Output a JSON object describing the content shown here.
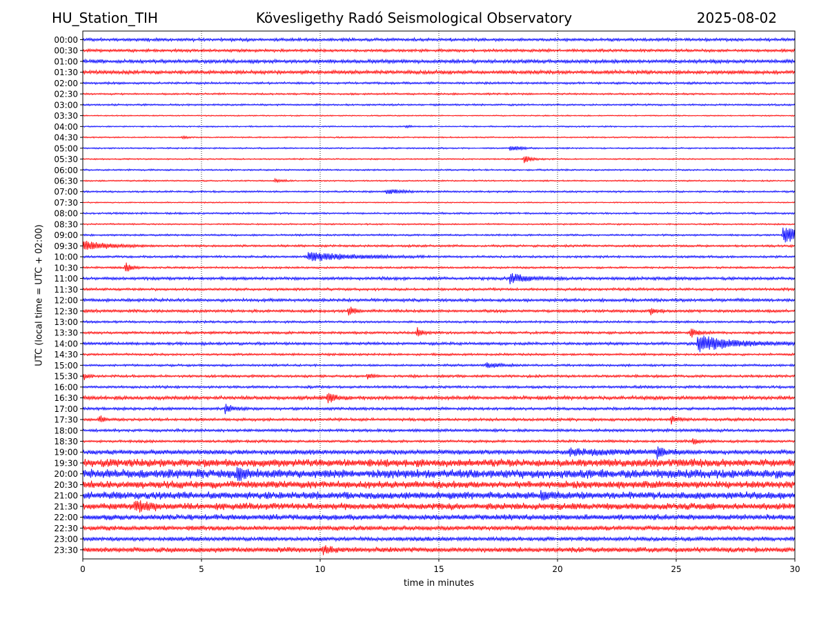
{
  "header": {
    "station": "HU_Station_TIH",
    "observatory": "Kövesligethy Radó Seismological Observatory",
    "date": "2025-08-02"
  },
  "chart_data": {
    "type": "line",
    "subtype": "helicorder",
    "title": "Kövesligethy Radó Seismological Observatory",
    "xlabel": "time in minutes",
    "ylabel": "UTC (local time = UTC + 02:00)",
    "xlim": [
      0,
      30
    ],
    "x_ticks": [
      0,
      5,
      10,
      15,
      20,
      25,
      30
    ],
    "grid": "vertical dotted lines at 5-minute ticks",
    "colors": {
      "even_rows": "#0000ff",
      "odd_rows": "#ff0000",
      "grid": "#000000"
    },
    "rows": [
      {
        "label": "00:00",
        "noise": 0.3,
        "events": []
      },
      {
        "label": "00:30",
        "noise": 0.28,
        "events": []
      },
      {
        "label": "01:00",
        "noise": 0.35,
        "events": []
      },
      {
        "label": "01:30",
        "noise": 0.35,
        "events": []
      },
      {
        "label": "02:00",
        "noise": 0.22,
        "events": []
      },
      {
        "label": "02:30",
        "noise": 0.18,
        "events": []
      },
      {
        "label": "03:00",
        "noise": 0.18,
        "events": []
      },
      {
        "label": "03:30",
        "noise": 0.12,
        "events": []
      },
      {
        "label": "04:00",
        "noise": 0.14,
        "events": [
          {
            "t": 13.6,
            "amp": 0.3,
            "dur": 0.2
          }
        ]
      },
      {
        "label": "04:30",
        "noise": 0.14,
        "events": [
          {
            "t": 4.2,
            "amp": 0.35,
            "dur": 0.2
          }
        ]
      },
      {
        "label": "05:00",
        "noise": 0.15,
        "events": [
          {
            "t": 18.0,
            "amp": 0.7,
            "dur": 0.4
          }
        ]
      },
      {
        "label": "05:30",
        "noise": 0.14,
        "events": [
          {
            "t": 18.6,
            "amp": 0.9,
            "dur": 0.3
          }
        ]
      },
      {
        "label": "06:00",
        "noise": 0.16,
        "events": []
      },
      {
        "label": "06:30",
        "noise": 0.14,
        "events": [
          {
            "t": 8.1,
            "amp": 0.4,
            "dur": 0.3
          }
        ]
      },
      {
        "label": "07:00",
        "noise": 0.18,
        "events": [
          {
            "t": 12.8,
            "amp": 0.6,
            "dur": 0.6
          }
        ]
      },
      {
        "label": "07:30",
        "noise": 0.12,
        "events": []
      },
      {
        "label": "08:00",
        "noise": 0.18,
        "events": []
      },
      {
        "label": "08:30",
        "noise": 0.15,
        "events": []
      },
      {
        "label": "09:00",
        "noise": 0.18,
        "events": [
          {
            "t": 29.5,
            "amp": 2.0,
            "dur": 0.9
          }
        ]
      },
      {
        "label": "09:30",
        "noise": 0.22,
        "events": [
          {
            "t": 0.0,
            "amp": 1.1,
            "dur": 1.0
          }
        ]
      },
      {
        "label": "10:00",
        "noise": 0.22,
        "events": [
          {
            "t": 9.5,
            "amp": 1.0,
            "dur": 1.8
          }
        ]
      },
      {
        "label": "10:30",
        "noise": 0.2,
        "events": [
          {
            "t": 1.8,
            "amp": 1.3,
            "dur": 0.2
          }
        ]
      },
      {
        "label": "11:00",
        "noise": 0.3,
        "events": [
          {
            "t": 18.0,
            "amp": 1.1,
            "dur": 0.8
          }
        ]
      },
      {
        "label": "11:30",
        "noise": 0.25,
        "events": []
      },
      {
        "label": "12:00",
        "noise": 0.3,
        "events": []
      },
      {
        "label": "12:30",
        "noise": 0.28,
        "events": [
          {
            "t": 11.2,
            "amp": 1.2,
            "dur": 0.2
          },
          {
            "t": 23.9,
            "amp": 0.7,
            "dur": 0.3
          }
        ]
      },
      {
        "label": "13:00",
        "noise": 0.22,
        "events": []
      },
      {
        "label": "13:30",
        "noise": 0.25,
        "events": [
          {
            "t": 14.1,
            "amp": 1.3,
            "dur": 0.2
          },
          {
            "t": 25.6,
            "amp": 1.1,
            "dur": 0.3
          }
        ]
      },
      {
        "label": "14:00",
        "noise": 0.28,
        "events": [
          {
            "t": 25.9,
            "amp": 2.0,
            "dur": 1.4
          }
        ]
      },
      {
        "label": "14:30",
        "noise": 0.22,
        "events": []
      },
      {
        "label": "15:00",
        "noise": 0.22,
        "events": [
          {
            "t": 17.0,
            "amp": 0.5,
            "dur": 0.6
          }
        ]
      },
      {
        "label": "15:30",
        "noise": 0.25,
        "events": [
          {
            "t": 0.05,
            "amp": 0.9,
            "dur": 0.15
          },
          {
            "t": 12.0,
            "amp": 0.7,
            "dur": 0.2
          }
        ]
      },
      {
        "label": "16:00",
        "noise": 0.25,
        "events": []
      },
      {
        "label": "16:30",
        "noise": 0.35,
        "events": [
          {
            "t": 10.3,
            "amp": 1.1,
            "dur": 0.3
          }
        ]
      },
      {
        "label": "17:00",
        "noise": 0.28,
        "events": [
          {
            "t": 6.0,
            "amp": 1.1,
            "dur": 0.3
          }
        ]
      },
      {
        "label": "17:30",
        "noise": 0.28,
        "events": [
          {
            "t": 0.7,
            "amp": 0.9,
            "dur": 0.2
          },
          {
            "t": 24.8,
            "amp": 0.9,
            "dur": 0.2
          }
        ]
      },
      {
        "label": "18:00",
        "noise": 0.28,
        "events": []
      },
      {
        "label": "18:30",
        "noise": 0.25,
        "events": [
          {
            "t": 25.7,
            "amp": 0.7,
            "dur": 0.3
          }
        ]
      },
      {
        "label": "19:00",
        "noise": 0.45,
        "events": [
          {
            "t": 24.2,
            "amp": 1.0,
            "dur": 0.3
          },
          {
            "t": 20.5,
            "amp": 0.6,
            "dur": 2.0
          }
        ]
      },
      {
        "label": "19:30",
        "noise": 0.75,
        "events": []
      },
      {
        "label": "20:00",
        "noise": 0.85,
        "events": [
          {
            "t": 6.5,
            "amp": 1.4,
            "dur": 0.3
          }
        ]
      },
      {
        "label": "20:30",
        "noise": 0.7,
        "events": []
      },
      {
        "label": "21:00",
        "noise": 0.7,
        "events": [
          {
            "t": 19.3,
            "amp": 0.9,
            "dur": 0.4
          }
        ]
      },
      {
        "label": "21:30",
        "noise": 0.65,
        "events": [
          {
            "t": 2.2,
            "amp": 1.0,
            "dur": 0.6
          }
        ]
      },
      {
        "label": "22:00",
        "noise": 0.55,
        "events": []
      },
      {
        "label": "22:30",
        "noise": 0.45,
        "events": []
      },
      {
        "label": "23:00",
        "noise": 0.4,
        "events": []
      },
      {
        "label": "23:30",
        "noise": 0.5,
        "events": [
          {
            "t": 10.1,
            "amp": 0.8,
            "dur": 0.3
          }
        ]
      }
    ]
  }
}
